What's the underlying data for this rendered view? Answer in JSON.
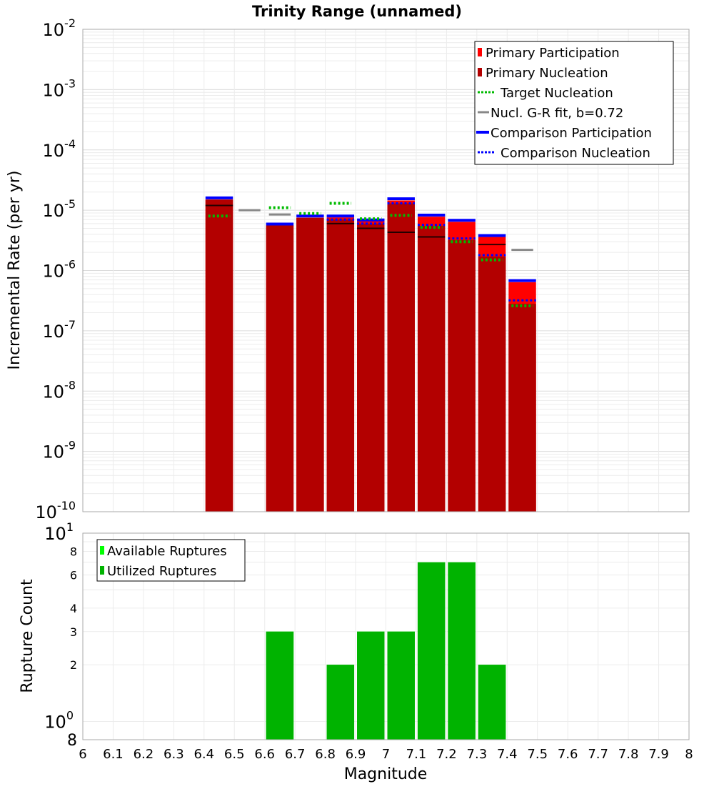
{
  "chart_data": [
    {
      "type": "bar",
      "title": "Trinity Range (unnamed)",
      "xlabel": "",
      "ylabel": "Incremental Rate (per yr)",
      "yscale": "log",
      "ylim": [
        1e-10,
        0.01
      ],
      "xlim": [
        6.0,
        8.0
      ],
      "grid": true,
      "legend_position": "top-right",
      "colors": {
        "primary_participation": "#ff0000",
        "primary_nucleation": "#b30000",
        "target_nucleation": "#00bb00",
        "gr_fit": "#888888",
        "comparison_participation": "#0000ff",
        "comparison_nucleation": "#0000ff",
        "nucl_marker": "#000000"
      },
      "legend": [
        {
          "key": "primary_participation",
          "label": "Primary Participation",
          "style": "box"
        },
        {
          "key": "primary_nucleation",
          "label": "Primary Nucleation",
          "style": "box"
        },
        {
          "key": "target_nucleation",
          "label": "Target Nucleation",
          "style": "dotted"
        },
        {
          "key": "gr_fit",
          "label": "Nucl. G-R fit, b=0.72",
          "style": "solid"
        },
        {
          "key": "comparison_participation",
          "label": "Comparison Participation",
          "style": "solid-thick"
        },
        {
          "key": "comparison_nucleation",
          "label": "Comparison Nucleation",
          "style": "dotted"
        }
      ],
      "bins": [
        {
          "m": 6.45,
          "participation": 1.5e-05,
          "nucleation": 1.5e-05,
          "nucl_marker": 1.2e-05,
          "comp_part": 1.6e-05,
          "comp_nucl": null,
          "target": 8e-06,
          "gr": null
        },
        {
          "m": 6.55,
          "participation": null,
          "nucleation": null,
          "nucl_marker": null,
          "comp_part": null,
          "comp_nucl": null,
          "target": null,
          "gr": 1e-05
        },
        {
          "m": 6.65,
          "participation": 5.6e-06,
          "nucleation": 5.6e-06,
          "nucl_marker": null,
          "comp_part": 5.9e-06,
          "comp_nucl": null,
          "target": 1.1e-05,
          "gr": 8.5e-06
        },
        {
          "m": 6.75,
          "participation": 7.5e-06,
          "nucleation": 7.5e-06,
          "nucl_marker": null,
          "comp_part": 8e-06,
          "comp_nucl": null,
          "target": 8.8e-06,
          "gr": null
        },
        {
          "m": 6.85,
          "participation": 7.6e-06,
          "nucleation": 7e-06,
          "nucl_marker": 6e-06,
          "comp_part": 8e-06,
          "comp_nucl": 7e-06,
          "target": 1.3e-05,
          "gr": null
        },
        {
          "m": 6.95,
          "participation": 6.6e-06,
          "nucleation": 6e-06,
          "nucl_marker": 5e-06,
          "comp_part": 6.9e-06,
          "comp_nucl": 6e-06,
          "target": 7.2e-06,
          "gr": null
        },
        {
          "m": 7.05,
          "participation": 1.45e-05,
          "nucleation": 1.3e-05,
          "nucl_marker": 4.3e-06,
          "comp_part": 1.55e-05,
          "comp_nucl": 1.3e-05,
          "target": 8.2e-06,
          "gr": null
        },
        {
          "m": 7.15,
          "participation": 7.8e-06,
          "nucleation": 5.5e-06,
          "nucl_marker": 3.6e-06,
          "comp_part": 8.3e-06,
          "comp_nucl": 5.7e-06,
          "target": 5.2e-06,
          "gr": null
        },
        {
          "m": 7.25,
          "participation": 6.4e-06,
          "nucleation": 3.2e-06,
          "nucl_marker": null,
          "comp_part": 6.8e-06,
          "comp_nucl": 3.4e-06,
          "target": 3e-06,
          "gr": null
        },
        {
          "m": 7.35,
          "participation": 3.6e-06,
          "nucleation": 1.7e-06,
          "nucl_marker": 2.7e-06,
          "comp_part": 3.8e-06,
          "comp_nucl": 1.8e-06,
          "target": 1.5e-06,
          "gr": null
        },
        {
          "m": 7.45,
          "participation": 6.4e-07,
          "nucleation": 2.8e-07,
          "nucl_marker": null,
          "comp_part": 6.8e-07,
          "comp_nucl": 3.2e-07,
          "target": 2.6e-07,
          "gr": 2.2e-06
        }
      ]
    },
    {
      "type": "bar",
      "title": "",
      "xlabel": "Magnitude",
      "ylabel": "Rupture Count",
      "yscale": "log",
      "ylim": [
        0.8,
        10
      ],
      "xlim": [
        6.0,
        8.0
      ],
      "grid": true,
      "legend_position": "top-left",
      "colors": {
        "available": "#00ff00",
        "utilized": "#00b300"
      },
      "legend": [
        {
          "key": "available",
          "label": "Available Ruptures"
        },
        {
          "key": "utilized",
          "label": "Utilized Ruptures"
        }
      ],
      "bins": [
        {
          "m": 6.65,
          "utilized": 3,
          "available": 3
        },
        {
          "m": 6.85,
          "utilized": 2,
          "available": 2
        },
        {
          "m": 6.95,
          "utilized": 3,
          "available": 3
        },
        {
          "m": 7.05,
          "utilized": 3,
          "available": 3
        },
        {
          "m": 7.15,
          "utilized": 7,
          "available": 7
        },
        {
          "m": 7.25,
          "utilized": 7,
          "available": 7
        },
        {
          "m": 7.35,
          "utilized": 2,
          "available": 2
        }
      ]
    }
  ],
  "axes": {
    "top_y_ticks": [
      {
        "exp": -2
      },
      {
        "exp": -3
      },
      {
        "exp": -4
      },
      {
        "exp": -5
      },
      {
        "exp": -6
      },
      {
        "exp": -7
      },
      {
        "exp": -8
      },
      {
        "exp": -9
      },
      {
        "exp": -10
      }
    ],
    "bottom_y_ticks": [
      {
        "value": 8,
        "label": "8"
      },
      {
        "value": 6,
        "label": "6"
      },
      {
        "value": 4,
        "label": "4"
      },
      {
        "value": 3,
        "label": "3"
      },
      {
        "value": 2,
        "label": "2"
      }
    ],
    "bottom_y_decades": [
      {
        "value": 10,
        "base": "10",
        "exp": "1"
      },
      {
        "value": 1,
        "base": "10",
        "exp": "0"
      }
    ],
    "bottom_y_min_label": "8",
    "x_ticks": [
      "6",
      "6.1",
      "6.2",
      "6.3",
      "6.4",
      "6.5",
      "6.6",
      "6.7",
      "6.8",
      "6.9",
      "7",
      "7.1",
      "7.2",
      "7.3",
      "7.4",
      "7.5",
      "7.6",
      "7.7",
      "7.8",
      "7.9",
      "8"
    ]
  }
}
